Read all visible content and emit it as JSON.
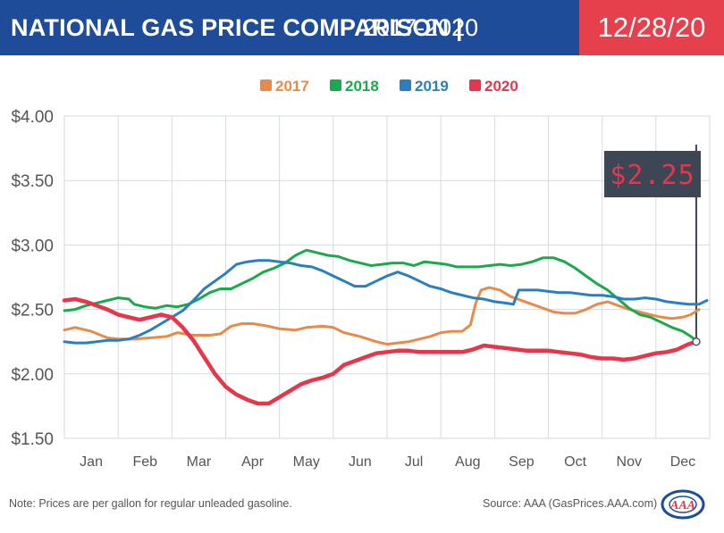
{
  "header": {
    "title": "NATIONAL GAS PRICE COMPARISON |",
    "subtitle": "2017-2020",
    "date": "12/28/20"
  },
  "colors": {
    "header_bg": "#1f4c99",
    "date_bg": "#e5404c",
    "2017": "#e88b4a",
    "2018": "#1aaa4b",
    "2019": "#2a7fc0",
    "2020": "#e5364a",
    "grid": "#d6dae3",
    "callout_bg": "#3c4654",
    "callout_text": "#e5364a"
  },
  "callout": {
    "label": "$2.25"
  },
  "footer": {
    "note": "Note: Prices are per gallon for regular unleaded gasoline.",
    "source": "Source: AAA (GasPrices.AAA.com)",
    "logo": "AAA"
  },
  "chart_data": {
    "type": "line",
    "title": "NATIONAL GAS PRICE COMPARISON | 2017-2020",
    "xlabel": "",
    "ylabel": "",
    "xlim": [
      0,
      12
    ],
    "ylim": [
      1.5,
      4.0
    ],
    "yticks": [
      1.5,
      2.0,
      2.5,
      3.0,
      3.5,
      4.0
    ],
    "ytick_labels": [
      "$1.50",
      "$2.00",
      "$2.50",
      "$3.00",
      "$3.50",
      "$4.00"
    ],
    "categories": [
      "Jan",
      "Feb",
      "Mar",
      "Apr",
      "May",
      "Jun",
      "Jul",
      "Aug",
      "Sep",
      "Oct",
      "Nov",
      "Dec"
    ],
    "grid": true,
    "legend": "top-center",
    "series": [
      {
        "name": "2017",
        "color": "#e88b4a",
        "points": [
          [
            0,
            2.34
          ],
          [
            0.2,
            2.36
          ],
          [
            0.5,
            2.33
          ],
          [
            0.8,
            2.28
          ],
          [
            1.0,
            2.27
          ],
          [
            1.3,
            2.27
          ],
          [
            1.6,
            2.28
          ],
          [
            1.9,
            2.29
          ],
          [
            2.1,
            2.32
          ],
          [
            2.4,
            2.3
          ],
          [
            2.7,
            2.3
          ],
          [
            2.9,
            2.31
          ],
          [
            3.1,
            2.37
          ],
          [
            3.3,
            2.39
          ],
          [
            3.5,
            2.39
          ],
          [
            3.8,
            2.37
          ],
          [
            4.0,
            2.35
          ],
          [
            4.3,
            2.34
          ],
          [
            4.5,
            2.36
          ],
          [
            4.8,
            2.37
          ],
          [
            5.0,
            2.36
          ],
          [
            5.2,
            2.32
          ],
          [
            5.5,
            2.29
          ],
          [
            5.8,
            2.25
          ],
          [
            6.0,
            2.23
          ],
          [
            6.2,
            2.24
          ],
          [
            6.4,
            2.25
          ],
          [
            6.6,
            2.27
          ],
          [
            6.8,
            2.29
          ],
          [
            7.0,
            2.32
          ],
          [
            7.2,
            2.33
          ],
          [
            7.4,
            2.33
          ],
          [
            7.55,
            2.38
          ],
          [
            7.65,
            2.55
          ],
          [
            7.75,
            2.65
          ],
          [
            7.9,
            2.67
          ],
          [
            8.1,
            2.65
          ],
          [
            8.3,
            2.6
          ],
          [
            8.5,
            2.57
          ],
          [
            8.7,
            2.54
          ],
          [
            8.9,
            2.51
          ],
          [
            9.1,
            2.48
          ],
          [
            9.3,
            2.47
          ],
          [
            9.5,
            2.47
          ],
          [
            9.7,
            2.5
          ],
          [
            9.9,
            2.54
          ],
          [
            10.1,
            2.56
          ],
          [
            10.3,
            2.53
          ],
          [
            10.5,
            2.5
          ],
          [
            10.7,
            2.48
          ],
          [
            10.9,
            2.46
          ],
          [
            11.1,
            2.44
          ],
          [
            11.3,
            2.43
          ],
          [
            11.5,
            2.44
          ],
          [
            11.65,
            2.46
          ],
          [
            11.8,
            2.5
          ]
        ]
      },
      {
        "name": "2018",
        "color": "#1aaa4b",
        "points": [
          [
            0,
            2.49
          ],
          [
            0.2,
            2.5
          ],
          [
            0.4,
            2.53
          ],
          [
            0.6,
            2.55
          ],
          [
            0.8,
            2.57
          ],
          [
            1.0,
            2.59
          ],
          [
            1.2,
            2.58
          ],
          [
            1.3,
            2.54
          ],
          [
            1.5,
            2.52
          ],
          [
            1.7,
            2.51
          ],
          [
            1.9,
            2.53
          ],
          [
            2.1,
            2.52
          ],
          [
            2.3,
            2.54
          ],
          [
            2.5,
            2.58
          ],
          [
            2.7,
            2.63
          ],
          [
            2.9,
            2.66
          ],
          [
            3.1,
            2.66
          ],
          [
            3.3,
            2.7
          ],
          [
            3.5,
            2.74
          ],
          [
            3.7,
            2.79
          ],
          [
            3.9,
            2.82
          ],
          [
            4.1,
            2.86
          ],
          [
            4.3,
            2.92
          ],
          [
            4.5,
            2.96
          ],
          [
            4.7,
            2.94
          ],
          [
            4.9,
            2.92
          ],
          [
            5.1,
            2.91
          ],
          [
            5.3,
            2.88
          ],
          [
            5.5,
            2.86
          ],
          [
            5.7,
            2.84
          ],
          [
            5.9,
            2.85
          ],
          [
            6.1,
            2.86
          ],
          [
            6.3,
            2.86
          ],
          [
            6.5,
            2.84
          ],
          [
            6.7,
            2.87
          ],
          [
            6.9,
            2.86
          ],
          [
            7.1,
            2.85
          ],
          [
            7.3,
            2.83
          ],
          [
            7.5,
            2.83
          ],
          [
            7.7,
            2.83
          ],
          [
            7.9,
            2.84
          ],
          [
            8.1,
            2.85
          ],
          [
            8.3,
            2.84
          ],
          [
            8.5,
            2.85
          ],
          [
            8.7,
            2.87
          ],
          [
            8.9,
            2.9
          ],
          [
            9.1,
            2.9
          ],
          [
            9.3,
            2.87
          ],
          [
            9.5,
            2.82
          ],
          [
            9.7,
            2.76
          ],
          [
            9.9,
            2.7
          ],
          [
            10.1,
            2.65
          ],
          [
            10.3,
            2.58
          ],
          [
            10.5,
            2.51
          ],
          [
            10.7,
            2.46
          ],
          [
            10.9,
            2.44
          ],
          [
            11.1,
            2.4
          ],
          [
            11.3,
            2.36
          ],
          [
            11.5,
            2.33
          ],
          [
            11.65,
            2.29
          ],
          [
            11.75,
            2.26
          ]
        ]
      },
      {
        "name": "2019",
        "color": "#2a7fc0",
        "points": [
          [
            0,
            2.25
          ],
          [
            0.2,
            2.24
          ],
          [
            0.4,
            2.24
          ],
          [
            0.6,
            2.25
          ],
          [
            0.8,
            2.26
          ],
          [
            1.0,
            2.26
          ],
          [
            1.2,
            2.27
          ],
          [
            1.4,
            2.3
          ],
          [
            1.6,
            2.34
          ],
          [
            1.8,
            2.39
          ],
          [
            2.0,
            2.44
          ],
          [
            2.2,
            2.49
          ],
          [
            2.4,
            2.57
          ],
          [
            2.6,
            2.66
          ],
          [
            2.8,
            2.72
          ],
          [
            3.0,
            2.78
          ],
          [
            3.2,
            2.85
          ],
          [
            3.4,
            2.87
          ],
          [
            3.6,
            2.88
          ],
          [
            3.8,
            2.88
          ],
          [
            4.0,
            2.87
          ],
          [
            4.2,
            2.86
          ],
          [
            4.4,
            2.84
          ],
          [
            4.6,
            2.83
          ],
          [
            4.8,
            2.8
          ],
          [
            5.0,
            2.76
          ],
          [
            5.2,
            2.72
          ],
          [
            5.4,
            2.68
          ],
          [
            5.6,
            2.68
          ],
          [
            5.8,
            2.72
          ],
          [
            6.0,
            2.76
          ],
          [
            6.2,
            2.79
          ],
          [
            6.4,
            2.76
          ],
          [
            6.6,
            2.72
          ],
          [
            6.8,
            2.68
          ],
          [
            7.0,
            2.66
          ],
          [
            7.2,
            2.63
          ],
          [
            7.4,
            2.61
          ],
          [
            7.6,
            2.59
          ],
          [
            7.8,
            2.58
          ],
          [
            8.0,
            2.56
          ],
          [
            8.2,
            2.55
          ],
          [
            8.35,
            2.54
          ],
          [
            8.45,
            2.65
          ],
          [
            8.6,
            2.65
          ],
          [
            8.8,
            2.65
          ],
          [
            9.0,
            2.64
          ],
          [
            9.2,
            2.63
          ],
          [
            9.4,
            2.63
          ],
          [
            9.6,
            2.62
          ],
          [
            9.8,
            2.61
          ],
          [
            10.0,
            2.61
          ],
          [
            10.2,
            2.6
          ],
          [
            10.4,
            2.58
          ],
          [
            10.6,
            2.58
          ],
          [
            10.8,
            2.59
          ],
          [
            11.0,
            2.58
          ],
          [
            11.2,
            2.56
          ],
          [
            11.4,
            2.55
          ],
          [
            11.6,
            2.54
          ],
          [
            11.8,
            2.54
          ],
          [
            11.95,
            2.57
          ]
        ]
      },
      {
        "name": "2020",
        "color": "#e5364a",
        "points": [
          [
            0,
            2.57
          ],
          [
            0.2,
            2.58
          ],
          [
            0.4,
            2.56
          ],
          [
            0.6,
            2.53
          ],
          [
            0.8,
            2.5
          ],
          [
            1.0,
            2.46
          ],
          [
            1.2,
            2.44
          ],
          [
            1.4,
            2.42
          ],
          [
            1.6,
            2.44
          ],
          [
            1.8,
            2.46
          ],
          [
            2.0,
            2.44
          ],
          [
            2.2,
            2.36
          ],
          [
            2.4,
            2.26
          ],
          [
            2.6,
            2.13
          ],
          [
            2.8,
            2.0
          ],
          [
            3.0,
            1.9
          ],
          [
            3.2,
            1.84
          ],
          [
            3.4,
            1.8
          ],
          [
            3.6,
            1.77
          ],
          [
            3.8,
            1.77
          ],
          [
            4.0,
            1.82
          ],
          [
            4.2,
            1.87
          ],
          [
            4.4,
            1.92
          ],
          [
            4.6,
            1.95
          ],
          [
            4.8,
            1.97
          ],
          [
            5.0,
            2.0
          ],
          [
            5.2,
            2.07
          ],
          [
            5.4,
            2.1
          ],
          [
            5.6,
            2.13
          ],
          [
            5.8,
            2.16
          ],
          [
            6.0,
            2.17
          ],
          [
            6.2,
            2.18
          ],
          [
            6.4,
            2.18
          ],
          [
            6.6,
            2.17
          ],
          [
            6.8,
            2.17
          ],
          [
            7.0,
            2.17
          ],
          [
            7.2,
            2.17
          ],
          [
            7.4,
            2.17
          ],
          [
            7.6,
            2.19
          ],
          [
            7.8,
            2.22
          ],
          [
            8.0,
            2.21
          ],
          [
            8.2,
            2.2
          ],
          [
            8.4,
            2.19
          ],
          [
            8.6,
            2.18
          ],
          [
            8.8,
            2.18
          ],
          [
            9.0,
            2.18
          ],
          [
            9.2,
            2.17
          ],
          [
            9.4,
            2.16
          ],
          [
            9.6,
            2.15
          ],
          [
            9.8,
            2.13
          ],
          [
            10.0,
            2.12
          ],
          [
            10.2,
            2.12
          ],
          [
            10.4,
            2.11
          ],
          [
            10.6,
            2.12
          ],
          [
            10.8,
            2.14
          ],
          [
            11.0,
            2.16
          ],
          [
            11.2,
            2.17
          ],
          [
            11.4,
            2.19
          ],
          [
            11.6,
            2.23
          ],
          [
            11.75,
            2.25
          ]
        ]
      }
    ],
    "annotations": [
      {
        "text": "$2.25",
        "x": 11.75,
        "y": 2.25,
        "series": "2020"
      }
    ]
  }
}
